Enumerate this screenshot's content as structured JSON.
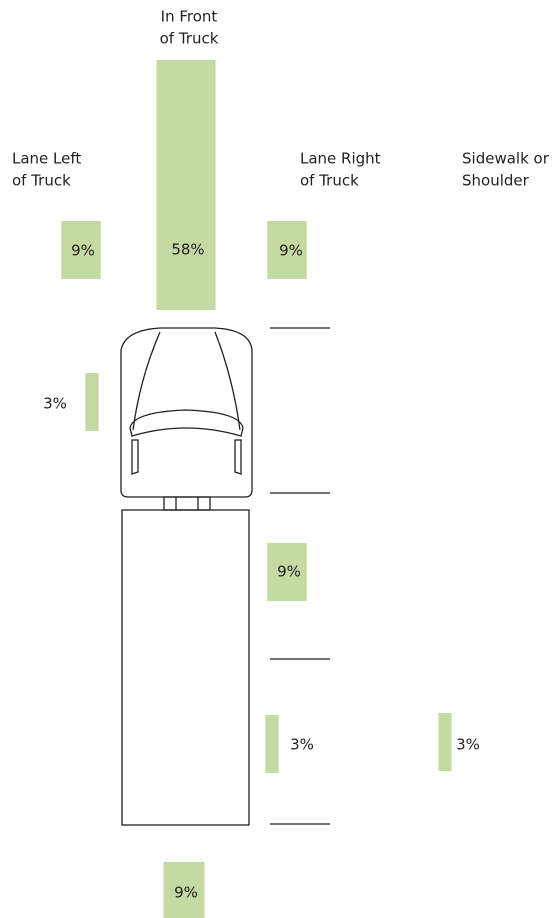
{
  "headers": [
    {
      "lines": [
        "In Front",
        "of Truck"
      ]
    },
    {
      "lines": [
        "Lane Left",
        "of Truck"
      ]
    },
    {
      "lines": [
        "Lane Right",
        "of Truck"
      ]
    },
    {
      "lines": [
        "Sidewalk or",
        "Shoulder"
      ]
    }
  ],
  "zones": [
    {
      "value": 9,
      "label": "9%"
    },
    {
      "value": 58,
      "label": "58%"
    },
    {
      "value": 9,
      "label": "9%"
    },
    {
      "value": 3,
      "label": "3%"
    },
    {
      "value": 9,
      "label": "9%"
    },
    {
      "value": 3,
      "label": "3%"
    },
    {
      "value": 3,
      "label": "3%"
    },
    {
      "value": 9,
      "label": "9%"
    }
  ]
}
